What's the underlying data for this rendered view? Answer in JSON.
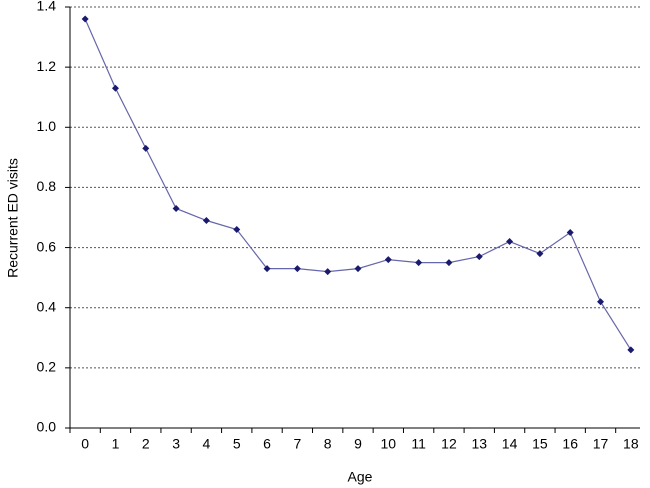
{
  "chart_data": {
    "type": "line",
    "x_label": "Age",
    "y_label": "Recurrent ED visits",
    "categories": [
      "0",
      "1",
      "2",
      "3",
      "4",
      "5",
      "6",
      "7",
      "8",
      "9",
      "10",
      "11",
      "12",
      "13",
      "14",
      "15",
      "16",
      "17",
      "18"
    ],
    "values": [
      1.36,
      1.13,
      0.93,
      0.73,
      0.69,
      0.66,
      0.53,
      0.53,
      0.52,
      0.53,
      0.56,
      0.55,
      0.55,
      0.57,
      0.62,
      0.58,
      0.65,
      0.42,
      0.26
    ],
    "color": "#6666aa",
    "marker_color": "#1a1a6e",
    "ylim": [
      0,
      1.4
    ],
    "yticks": [
      {
        "value": 0,
        "label": "0.0"
      },
      0.2,
      0.4,
      0.6,
      0.8,
      {
        "value": 1,
        "label": "1.0"
      },
      1.2,
      1.4
    ],
    "grid": true
  }
}
